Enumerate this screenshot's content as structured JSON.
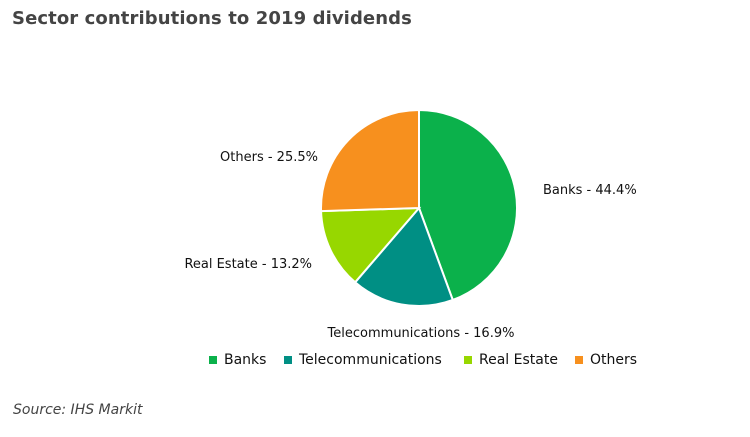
{
  "chart_data": {
    "type": "pie",
    "title": "Sector contributions to 2019 dividends",
    "slices": [
      {
        "name": "Banks",
        "value": 44.4,
        "label": "Banks - 44.4%",
        "color": "#0bb14b"
      },
      {
        "name": "Telecommunications",
        "value": 16.9,
        "label": "Telecommunications - 16.9%",
        "color": "#008f84"
      },
      {
        "name": "Real Estate",
        "value": 13.2,
        "label": "Real Estate - 13.2%",
        "color": "#97d700"
      },
      {
        "name": "Others",
        "value": 25.5,
        "label": "Others - 25.5%",
        "color": "#f7901e"
      }
    ],
    "legend": {
      "placement": "bottom",
      "items": [
        "Banks",
        "Telecommunications",
        "Real Estate",
        "Others"
      ]
    }
  },
  "source": "Source: IHS Markit"
}
